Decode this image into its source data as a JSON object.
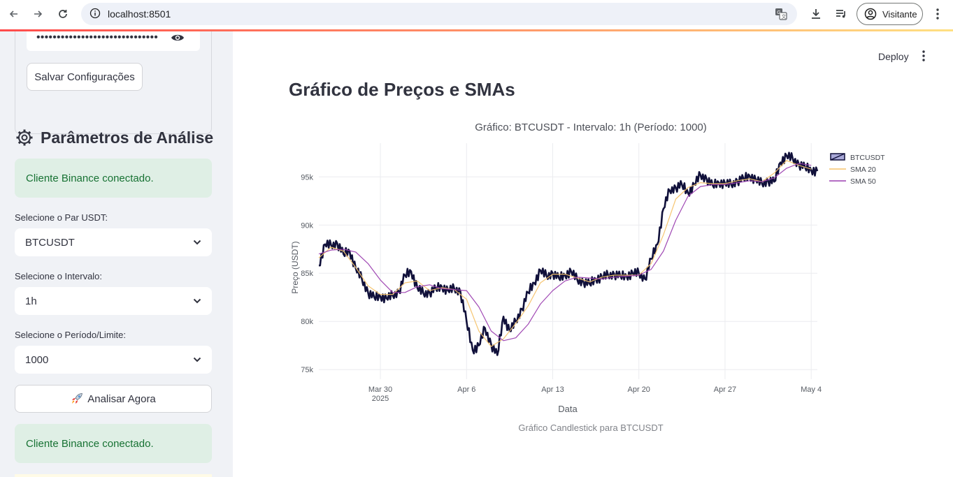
{
  "browser": {
    "url": "localhost:8501",
    "profile_label": "Visitante"
  },
  "sidebar": {
    "password_mask": "••••••••••••••••••••••••••••••",
    "save_button": "Salvar Configurações",
    "section_title": "Parâmetros de Análise",
    "alert_top": "Cliente Binance conectado.",
    "pair_label": "Selecione o Par USDT:",
    "pair_value": "BTCUSDT",
    "interval_label": "Selecione o Intervalo:",
    "interval_value": "1h",
    "limit_label": "Selecione o Período/Limite:",
    "limit_value": "1000",
    "analyze_button": "Analisar Agora",
    "alert_bottom": "Cliente Binance conectado."
  },
  "main": {
    "deploy_label": "Deploy",
    "page_title": "Gráfico de Preços e SMAs",
    "caption": "Gráfico Candlestick para BTCUSDT"
  },
  "colors": {
    "candle": "#10103a",
    "sma20": "#f5c36b",
    "sma50": "#9b3fb0",
    "success_bg": "#dfefe5",
    "success_text": "#177233"
  },
  "chart_data": {
    "type": "line",
    "title": "Gráfico: BTCUSDT - Intervalo: 1h (Período: 1000)",
    "xlabel": "Data",
    "ylabel": "Preço (USDT)",
    "x_ticks": [
      "Mar 30\n2025",
      "Apr 6",
      "Apr 13",
      "Apr 20",
      "Apr 27",
      "May 4"
    ],
    "x_tick_dates": [
      "2025-03-30",
      "2025-04-06",
      "2025-04-13",
      "2025-04-20",
      "2025-04-27",
      "2025-05-04"
    ],
    "y_ticks": [
      "75k",
      "80k",
      "85k",
      "90k",
      "95k"
    ],
    "y_tick_values": [
      75000,
      80000,
      85000,
      90000,
      95000
    ],
    "ylim": [
      74000,
      98500
    ],
    "xlim": [
      "2025-03-25",
      "2025-05-04 12:00"
    ],
    "legend": [
      "BTCUSDT",
      "SMA 20",
      "SMA 50"
    ],
    "legend_position": "top-right",
    "grid": true,
    "series": [
      {
        "name": "BTCUSDT",
        "x": [
          "2025-03-25",
          "2025-03-25 12:00",
          "2025-03-26",
          "2025-03-26 12:00",
          "2025-03-27",
          "2025-03-27 12:00",
          "2025-03-28",
          "2025-03-28 12:00",
          "2025-03-29",
          "2025-03-29 12:00",
          "2025-03-30",
          "2025-03-30 12:00",
          "2025-03-31",
          "2025-03-31 12:00",
          "2025-04-01",
          "2025-04-01 12:00",
          "2025-04-02",
          "2025-04-02 12:00",
          "2025-04-03",
          "2025-04-03 12:00",
          "2025-04-04",
          "2025-04-04 12:00",
          "2025-04-05",
          "2025-04-05 12:00",
          "2025-04-06",
          "2025-04-06 12:00",
          "2025-04-07",
          "2025-04-07 12:00",
          "2025-04-08",
          "2025-04-08 12:00",
          "2025-04-09",
          "2025-04-09 12:00",
          "2025-04-10",
          "2025-04-10 12:00",
          "2025-04-11",
          "2025-04-11 12:00",
          "2025-04-12",
          "2025-04-12 12:00",
          "2025-04-13",
          "2025-04-13 12:00",
          "2025-04-14",
          "2025-04-14 12:00",
          "2025-04-15",
          "2025-04-15 12:00",
          "2025-04-16",
          "2025-04-16 12:00",
          "2025-04-17",
          "2025-04-17 12:00",
          "2025-04-18",
          "2025-04-18 12:00",
          "2025-04-19",
          "2025-04-19 12:00",
          "2025-04-20",
          "2025-04-20 12:00",
          "2025-04-21",
          "2025-04-21 12:00",
          "2025-04-22",
          "2025-04-22 12:00",
          "2025-04-23",
          "2025-04-23 12:00",
          "2025-04-24",
          "2025-04-24 12:00",
          "2025-04-25",
          "2025-04-25 12:00",
          "2025-04-26",
          "2025-04-26 12:00",
          "2025-04-27",
          "2025-04-27 12:00",
          "2025-04-28",
          "2025-04-28 12:00",
          "2025-04-29",
          "2025-04-29 12:00",
          "2025-04-30",
          "2025-04-30 12:00",
          "2025-05-01",
          "2025-05-01 12:00",
          "2025-05-02",
          "2025-05-02 12:00",
          "2025-05-03",
          "2025-05-03 12:00",
          "2025-05-04",
          "2025-05-04 12:00"
        ],
        "values": [
          85800,
          88000,
          87900,
          88100,
          87000,
          87300,
          85500,
          84400,
          83000,
          82500,
          82600,
          82400,
          82700,
          83100,
          84800,
          85200,
          83500,
          82900,
          83000,
          83400,
          83600,
          83200,
          83400,
          83100,
          80000,
          77000,
          77500,
          79300,
          77600,
          76500,
          80500,
          79000,
          80000,
          81300,
          83000,
          84000,
          85300,
          84700,
          85000,
          84500,
          84800,
          85200,
          84300,
          84100,
          83900,
          84400,
          84600,
          84800,
          84900,
          84700,
          84700,
          85000,
          85000,
          84400,
          86500,
          88000,
          91700,
          93600,
          93900,
          94200,
          93300,
          94200,
          95200,
          94800,
          94100,
          94400,
          94300,
          94200,
          94600,
          94800,
          95100,
          94700,
          94300,
          94600,
          94500,
          96500,
          97200,
          96900,
          96300,
          96000,
          95700,
          95600
        ]
      },
      {
        "name": "SMA 20",
        "x": [
          "2025-03-25",
          "2025-03-26",
          "2025-03-27",
          "2025-03-28",
          "2025-03-29",
          "2025-03-30",
          "2025-03-31",
          "2025-04-01",
          "2025-04-02",
          "2025-04-03",
          "2025-04-04",
          "2025-04-05",
          "2025-04-06",
          "2025-04-07",
          "2025-04-08",
          "2025-04-09",
          "2025-04-10",
          "2025-04-11",
          "2025-04-12",
          "2025-04-13",
          "2025-04-14",
          "2025-04-15",
          "2025-04-16",
          "2025-04-17",
          "2025-04-18",
          "2025-04-19",
          "2025-04-20",
          "2025-04-21",
          "2025-04-22",
          "2025-04-23",
          "2025-04-24",
          "2025-04-25",
          "2025-04-26",
          "2025-04-27",
          "2025-04-28",
          "2025-04-29",
          "2025-04-30",
          "2025-05-01",
          "2025-05-02",
          "2025-05-03",
          "2025-05-04"
        ],
        "values": [
          86600,
          87700,
          87300,
          85600,
          83700,
          82800,
          82800,
          84000,
          84200,
          83200,
          83500,
          83300,
          82300,
          79000,
          77400,
          78200,
          79800,
          81600,
          84000,
          84900,
          84900,
          84500,
          84100,
          84600,
          84800,
          84800,
          84800,
          86000,
          89000,
          92700,
          93900,
          94400,
          94300,
          94300,
          94600,
          94800,
          94500,
          95400,
          96700,
          96200,
          95800
        ]
      },
      {
        "name": "SMA 50",
        "x": [
          "2025-03-25",
          "2025-03-26",
          "2025-03-27",
          "2025-03-28",
          "2025-03-29",
          "2025-03-30",
          "2025-03-31",
          "2025-04-01",
          "2025-04-02",
          "2025-04-03",
          "2025-04-04",
          "2025-04-05",
          "2025-04-06",
          "2025-04-07",
          "2025-04-08",
          "2025-04-09",
          "2025-04-10",
          "2025-04-11",
          "2025-04-12",
          "2025-04-13",
          "2025-04-14",
          "2025-04-15",
          "2025-04-16",
          "2025-04-17",
          "2025-04-18",
          "2025-04-19",
          "2025-04-20",
          "2025-04-21",
          "2025-04-22",
          "2025-04-23",
          "2025-04-24",
          "2025-04-25",
          "2025-04-26",
          "2025-04-27",
          "2025-04-28",
          "2025-04-29",
          "2025-04-30",
          "2025-05-01",
          "2025-05-02",
          "2025-05-03",
          "2025-05-04"
        ],
        "values": [
          87000,
          87400,
          87500,
          87200,
          86000,
          84300,
          83000,
          83000,
          83600,
          83800,
          83400,
          83300,
          83200,
          81500,
          79000,
          78000,
          78300,
          79700,
          81800,
          83200,
          84200,
          84600,
          84500,
          84400,
          84600,
          84700,
          84800,
          85400,
          87300,
          90500,
          93000,
          94000,
          94200,
          94200,
          94400,
          94600,
          94500,
          94900,
          95900,
          96400,
          96200
        ]
      }
    ]
  }
}
